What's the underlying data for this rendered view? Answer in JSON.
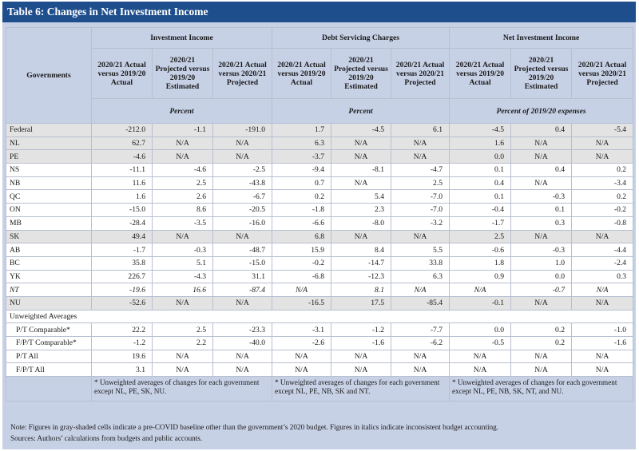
{
  "title": "Table 6: Changes in Net Investment Income",
  "governments_header": "Governments",
  "groups": [
    "Investment Income",
    "Debt Servicing Charges",
    "Net Investment Income"
  ],
  "subheaders": [
    "2020/21 Actual versus 2019/20 Actual",
    "2020/21 Projected versus 2019/20 Estimated",
    "2020/21 Actual versus 2020/21 Projected",
    "2020/21 Actual versus 2019/20 Actual",
    "2020/21 Projected versus 2019/20 Estimated",
    "2020/21 Actual versus 2020/21 Projected",
    "2020/21 Actual versus 2019/20 Actual",
    "2020/21 Projected versus 2019/20 Estimated",
    "2020/21 Actual versus 2020/21 Projected"
  ],
  "units": [
    "Percent",
    "Percent",
    "Percent of 2019/20 expenses"
  ],
  "rows": [
    {
      "label": "Federal",
      "v": [
        "-212.0",
        "-1.1",
        "-191.0",
        "1.7",
        "-4.5",
        "6.1",
        "-4.5",
        "0.4",
        "-5.4"
      ],
      "gray": true,
      "italic": false
    },
    {
      "label": "NL",
      "v": [
        "62.7",
        "N/A",
        "N/A",
        "6.3",
        "N/A",
        "N/A",
        "1.6",
        "N/A",
        "N/A"
      ],
      "gray": true,
      "italic": false
    },
    {
      "label": "PE",
      "v": [
        "-4.6",
        "N/A",
        "N/A",
        "-3.7",
        "N/A",
        "N/A",
        "0.0",
        "N/A",
        "N/A"
      ],
      "gray": true,
      "italic": false
    },
    {
      "label": "NS",
      "v": [
        "-11.1",
        "-4.6",
        "-2.5",
        "-9.4",
        "-8.1",
        "-4.7",
        "0.1",
        "0.4",
        "0.2"
      ],
      "gray": false,
      "italic": false
    },
    {
      "label": "NB",
      "v": [
        "11.6",
        "2.5",
        "-43.8",
        "0.7",
        "N/A",
        "2.5",
        "0.4",
        "N/A",
        "-3.4"
      ],
      "gray": false,
      "italic": false
    },
    {
      "label": "QC",
      "v": [
        "1.6",
        "2.6",
        "-6.7",
        "0.2",
        "5.4",
        "-7.0",
        "0.1",
        "-0.3",
        "0.2"
      ],
      "gray": false,
      "italic": false
    },
    {
      "label": "ON",
      "v": [
        "-15.0",
        "8.6",
        "-20.5",
        "-1.8",
        "2.3",
        "-7.0",
        "-0.4",
        "0.1",
        "-0.2"
      ],
      "gray": false,
      "italic": false
    },
    {
      "label": "MB",
      "v": [
        "-28.4",
        "-3.5",
        "-16.0",
        "-6.6",
        "-8.0",
        "-3.2",
        "-1.7",
        "0.3",
        "-0.8"
      ],
      "gray": false,
      "italic": false
    },
    {
      "label": "SK",
      "v": [
        "49.4",
        "N/A",
        "N/A",
        "6.8",
        "N/A",
        "N/A",
        "2.5",
        "N/A",
        "N/A"
      ],
      "gray": true,
      "italic": false
    },
    {
      "label": "AB",
      "v": [
        "-1.7",
        "-0.3",
        "-48.7",
        "15.9",
        "8.4",
        "5.5",
        "-0.6",
        "-0.3",
        "-4.4"
      ],
      "gray": false,
      "italic": false
    },
    {
      "label": "BC",
      "v": [
        "35.8",
        "5.1",
        "-15.0",
        "-0.2",
        "-14.7",
        "33.8",
        "1.8",
        "1.0",
        "-2.4"
      ],
      "gray": false,
      "italic": false
    },
    {
      "label": "YK",
      "v": [
        "226.7",
        "-4.3",
        "31.1",
        "-6.8",
        "-12.3",
        "6.3",
        "0.9",
        "0.0",
        "0.3"
      ],
      "gray": false,
      "italic": false
    },
    {
      "label": "NT",
      "v": [
        "-19.6",
        "16.6",
        "-87.4",
        "N/A",
        "8.1",
        "N/A",
        "N/A",
        "-0.7",
        "N/A"
      ],
      "gray": false,
      "italic": true
    },
    {
      "label": "NU",
      "v": [
        "-52.6",
        "N/A",
        "N/A",
        "-16.5",
        "17.5",
        "-85.4",
        "-0.1",
        "N/A",
        "N/A"
      ],
      "gray": true,
      "italic": false
    }
  ],
  "section_label": "Unweighted Averages",
  "avg_rows": [
    {
      "label": "P/T Comparable*",
      "v": [
        "22.2",
        "2.5",
        "-23.3",
        "-3.1",
        "-1.2",
        "-7.7",
        "0.0",
        "0.2",
        "-1.0"
      ]
    },
    {
      "label": "F/P/T Comparable*",
      "v": [
        "-1.2",
        "2.2",
        "-40.0",
        "-2.6",
        "-1.6",
        "-6.2",
        "-0.5",
        "0.2",
        "-1.6"
      ]
    },
    {
      "label": "P/T All",
      "v": [
        "19.6",
        "N/A",
        "N/A",
        "N/A",
        "N/A",
        "N/A",
        "N/A",
        "N/A",
        "N/A"
      ]
    },
    {
      "label": "F/P/T All",
      "v": [
        "3.1",
        "N/A",
        "N/A",
        "N/A",
        "N/A",
        "N/A",
        "N/A",
        "N/A",
        "N/A"
      ]
    }
  ],
  "footnotes": [
    "* Unweighted averages of changes for each government except NL, PE, SK, NU.",
    "* Unweighted averages of changes for each government except NL, PE, NB, SK and NT.",
    "* Unweighted averages of changes for each government except NL, PE, NB, SK, NT, and NU."
  ],
  "note": "Note: Figures in gray-shaded cells indicate a pre-COVID baseline other than the government’s 2020 budget. Figures in italics indicate inconsistent budget accounting.",
  "sources": "Sources: Authors’ calculations from budgets and public accounts."
}
